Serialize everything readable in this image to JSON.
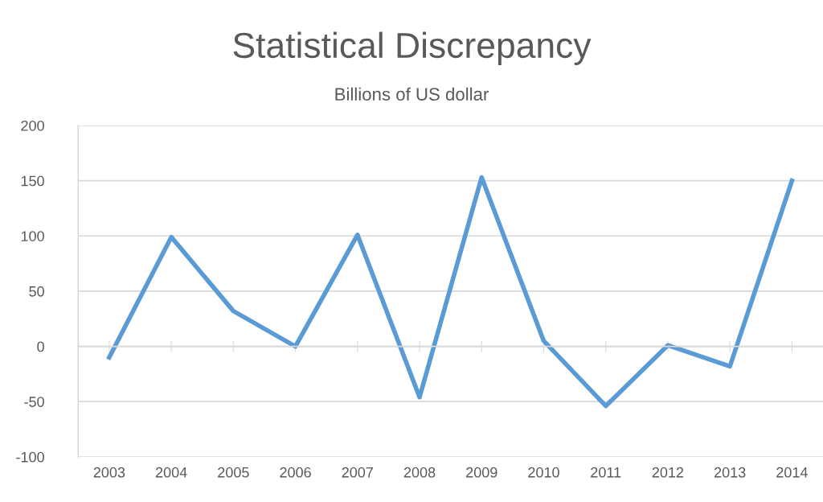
{
  "chart_data": {
    "type": "line",
    "title": "Statistical Discrepancy",
    "subtitle": "Billions of US dollar",
    "categories": [
      "2003",
      "2004",
      "2005",
      "2006",
      "2007",
      "2008",
      "2009",
      "2010",
      "2011",
      "2012",
      "2013",
      "2014"
    ],
    "series": [
      {
        "color": "#5b9bd5",
        "values": [
          -10,
          99,
          32,
          0,
          101,
          -46,
          153,
          5,
          -54,
          1,
          -18,
          150
        ]
      }
    ],
    "ylim": [
      -100,
      200
    ],
    "yticks": [
      -100,
      -50,
      0,
      50,
      100,
      150,
      200
    ],
    "grid": "y",
    "legend": false,
    "marker": "none",
    "line_style": "solid"
  }
}
